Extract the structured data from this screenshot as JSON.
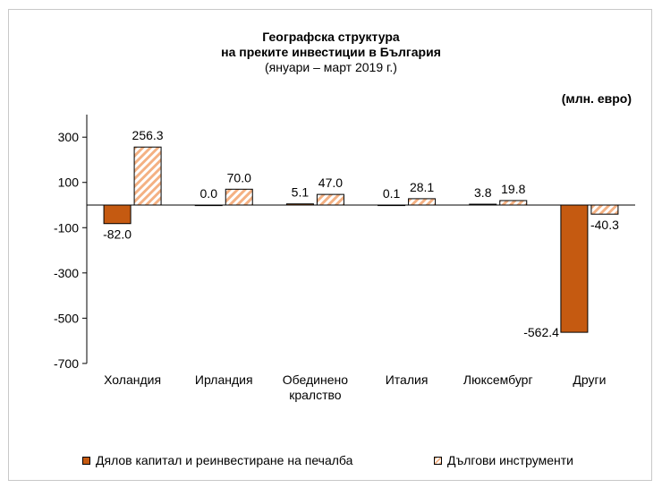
{
  "chart_data": {
    "type": "bar",
    "title_line1": "Географска структура",
    "title_line2": "на преките инвестиции в България",
    "subtitle": "(януари – март 2019 г.)",
    "unit": "(млн. евро)",
    "categories": [
      [
        "Холандия"
      ],
      [
        "Ирландия"
      ],
      [
        "Обединено",
        "кралство"
      ],
      [
        "Италия"
      ],
      [
        "Люксембург"
      ],
      [
        "Други"
      ]
    ],
    "series": [
      {
        "name": "Дялов капитал и реинвестиране на печалба",
        "color": "#c55a11",
        "values": [
          -82.0,
          0.0,
          5.1,
          0.1,
          3.8,
          -562.4
        ],
        "labels": [
          "-82.0",
          "0.0",
          "5.1",
          "0.1",
          "3.8",
          "-562.4"
        ]
      },
      {
        "name": "Дългови инструменти",
        "color": "#f4b183",
        "pattern": "hatched",
        "values": [
          256.3,
          70.0,
          47.0,
          28.1,
          19.8,
          -40.3
        ],
        "labels": [
          "256.3",
          "70.0",
          "47.0",
          "28.1",
          "19.8",
          "-40.3"
        ]
      }
    ],
    "yticks": [
      300,
      100,
      -100,
      -300,
      -500,
      -700
    ],
    "ylim": [
      -700,
      400
    ]
  }
}
